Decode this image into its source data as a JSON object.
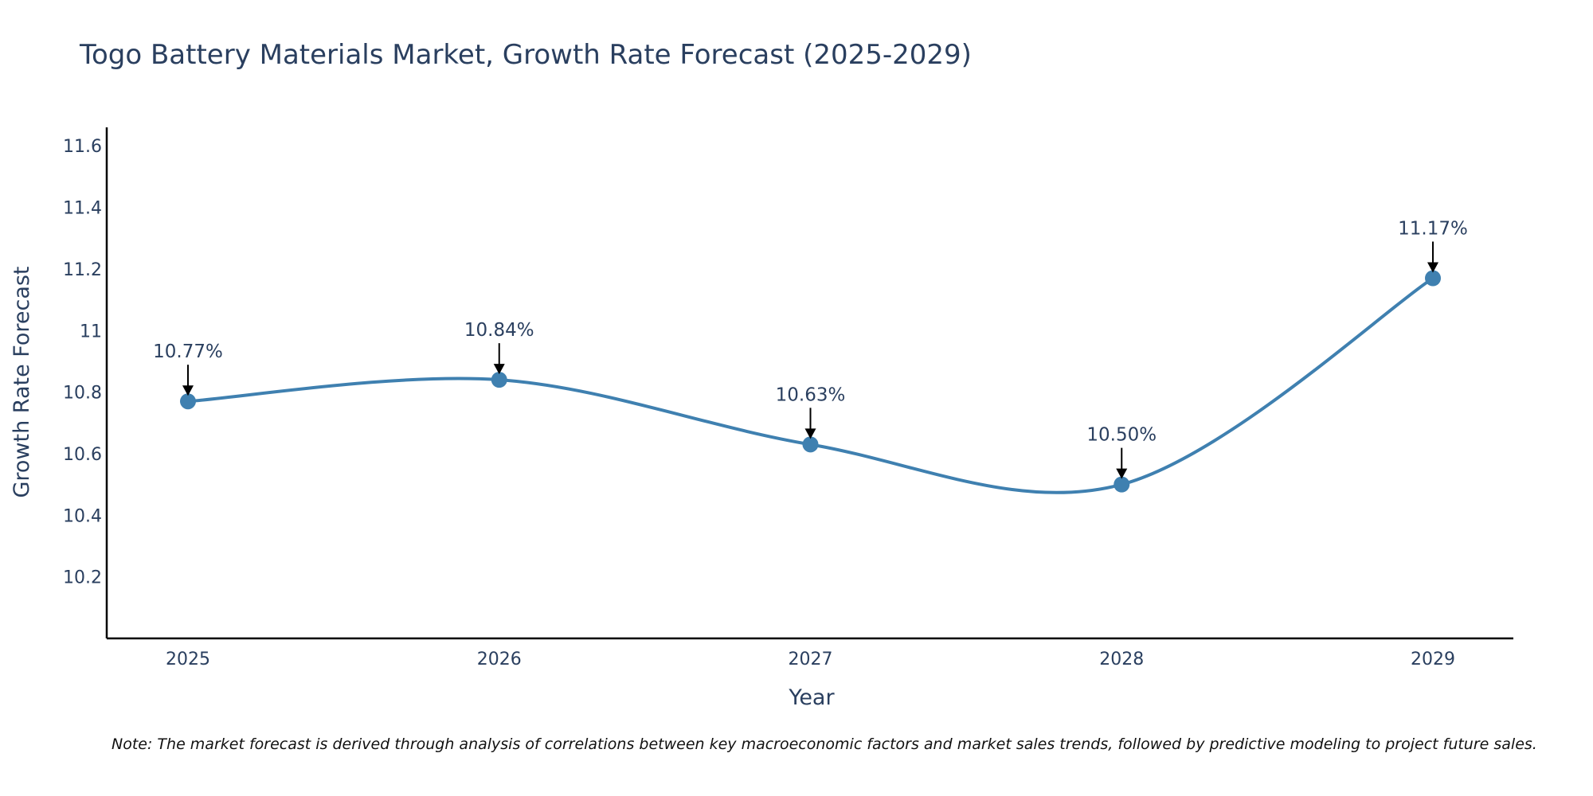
{
  "chart_data": {
    "type": "line",
    "title": "Togo Battery Materials Market, Growth Rate Forecast (2025-2029)",
    "xlabel": "Year",
    "ylabel": "Growth Rate Forecast",
    "categories": [
      "2025",
      "2026",
      "2027",
      "2028",
      "2029"
    ],
    "values": [
      10.77,
      10.84,
      10.63,
      10.5,
      11.17
    ],
    "data_labels": [
      "10.77%",
      "10.84%",
      "10.63%",
      "10.50%",
      "11.17%"
    ],
    "y_ticks": [
      10.2,
      10.4,
      10.6,
      10.8,
      11,
      11.2,
      11.4,
      11.6
    ],
    "y_tick_labels": [
      "10.2",
      "10.4",
      "10.6",
      "10.8",
      "11",
      "11.2",
      "11.4",
      "11.6"
    ],
    "ylim": [
      10.0,
      11.66
    ],
    "line_color": "#3f80b0",
    "marker_color": "#3f80b0",
    "grid": false,
    "curve": "spline",
    "note": "Note: The market forecast is derived through analysis of correlations between key macroeconomic factors and market sales trends, followed by predictive modeling to project future sales."
  }
}
